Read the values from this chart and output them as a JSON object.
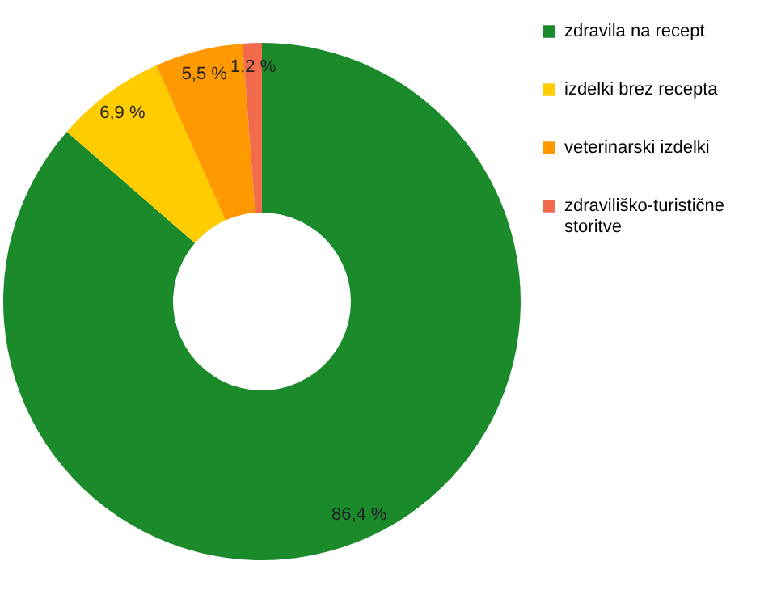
{
  "chart_data": {
    "type": "donut",
    "categories": [
      "zdravila na recept",
      "izdelki brez recepta",
      "veterinarski izdelki",
      "zdraviliško-turistične storitve"
    ],
    "values": [
      86.4,
      6.9,
      5.5,
      1.2
    ],
    "colors": [
      "#1b8a2b",
      "#ffcc00",
      "#ff9900",
      "#f26b4c"
    ],
    "value_labels": [
      "86,4 %",
      "6,9 %",
      "5,5 %",
      "1,2 %"
    ],
    "legend": "right"
  }
}
